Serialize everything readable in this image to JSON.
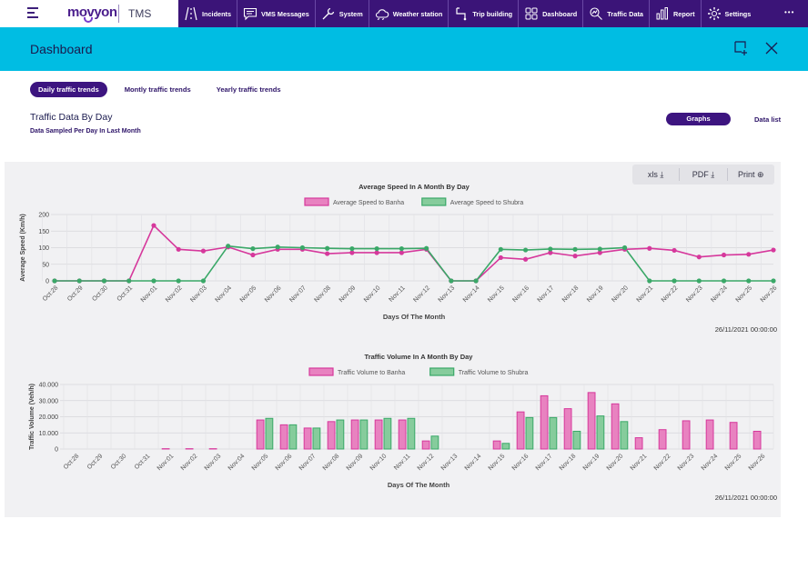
{
  "brand": {
    "logo": "movyon",
    "app": "TMS"
  },
  "nav": {
    "items": [
      {
        "label": "Incidents",
        "icon": "road-icon"
      },
      {
        "label": "VMS Messages",
        "icon": "message-icon"
      },
      {
        "label": "System",
        "icon": "wrench-icon"
      },
      {
        "label": "Weather station",
        "icon": "weather-icon"
      },
      {
        "label": "Trip building",
        "icon": "route-icon"
      },
      {
        "label": "Dashboard",
        "icon": "grid-icon"
      },
      {
        "label": "Traffic Data",
        "icon": "analytics-icon"
      },
      {
        "label": "Report",
        "icon": "bar-chart-icon"
      },
      {
        "label": "Settings",
        "icon": "gear-icon"
      }
    ],
    "more": "•••"
  },
  "header": {
    "title": "Dashboard"
  },
  "tabs": [
    "Daily traffic trends",
    "Montly traffic trends",
    "Yearly traffic trends"
  ],
  "section": {
    "title": "Traffic Data  By Day",
    "subtitle": "Data Sampled Per Day In Last Month"
  },
  "view": {
    "graphs": "Graphs",
    "datalist": "Data list"
  },
  "export": {
    "xls": "xls ⤓",
    "pdf": "PDF ⤓",
    "print": "Print ⊕"
  },
  "colors": {
    "banha": "#d6389c",
    "shubra": "#3aa868",
    "nav": "#3b1478",
    "header": "#00bde3"
  },
  "chart_data": [
    {
      "type": "line",
      "title": "Average Speed In A Month By Day",
      "xlabel": "Days Of The Month",
      "ylabel": "Average Speed (Km/h)",
      "ylim": [
        0,
        200
      ],
      "yticks": [
        "0",
        "50",
        "100",
        "150",
        "200"
      ],
      "categories": [
        "Oct:28",
        "Oct:29",
        "Oct:30",
        "Oct:31",
        "Nov:01",
        "Nov:02",
        "Nov:03",
        "Nov:04",
        "Nov:05",
        "Nov:06",
        "Nov:07",
        "Nov:08",
        "Nov:09",
        "Nov:10",
        "Nov:11",
        "Nov:12",
        "Nov:13",
        "Nov:14",
        "Nov:15",
        "Nov:16",
        "Nov:17",
        "Nov:18",
        "Nov:19",
        "Nov:20",
        "Nov:21",
        "Nov:22",
        "Nov:23",
        "Nov:24",
        "Nov:25",
        "Nov:26"
      ],
      "series": [
        {
          "name": "Average Speed to Banha",
          "values": [
            0,
            0,
            0,
            0,
            167,
            95,
            90,
            102,
            78,
            95,
            95,
            82,
            85,
            85,
            85,
            95,
            0,
            0,
            70,
            65,
            85,
            75,
            85,
            95,
            98,
            92,
            72,
            78,
            80,
            93
          ]
        },
        {
          "name": "Average Speed to Shubra",
          "values": [
            0,
            0,
            0,
            0,
            0,
            0,
            0,
            105,
            97,
            102,
            100,
            98,
            97,
            97,
            97,
            98,
            0,
            0,
            95,
            93,
            96,
            95,
            96,
            100,
            0,
            0,
            0,
            0,
            0,
            0
          ]
        }
      ],
      "timestamp": "26/11/2021 00:00:00"
    },
    {
      "type": "bar",
      "title": "Traffic Volume In A Month By Day",
      "xlabel": "Days Of The Month",
      "ylabel": "Traffic Volume (Veh/h)",
      "ylim": [
        0,
        40000
      ],
      "yticks": [
        "0",
        "10.000",
        "20.000",
        "30.000",
        "40.000"
      ],
      "categories": [
        "Oct:28",
        "Oct:29",
        "Oct:30",
        "Oct:31",
        "Nov:01",
        "Nov:02",
        "Nov:03",
        "Nov:04",
        "Nov:05",
        "Nov:06",
        "Nov:07",
        "Nov:08",
        "Nov:09",
        "Nov:10",
        "Nov:11",
        "Nov:12",
        "Nov:13",
        "Nov:14",
        "Nov:15",
        "Nov:16",
        "Nov:17",
        "Nov:18",
        "Nov:19",
        "Nov:20",
        "Nov:21",
        "Nov:22",
        "Nov:23",
        "Nov:24",
        "Nov:25",
        "Nov:26"
      ],
      "series": [
        {
          "name": "Traffic Volume to Banha",
          "values": [
            0,
            0,
            0,
            0,
            200,
            200,
            200,
            0,
            18000,
            15000,
            13000,
            17000,
            18000,
            18000,
            18000,
            5000,
            0,
            0,
            5000,
            23000,
            33000,
            25000,
            35000,
            28000,
            7000,
            12000,
            17500,
            18000,
            16500,
            11000
          ]
        },
        {
          "name": "Traffic Volume to Shubra",
          "values": [
            0,
            0,
            0,
            0,
            0,
            0,
            0,
            0,
            19000,
            15000,
            13000,
            18000,
            18000,
            19000,
            19000,
            8000,
            0,
            0,
            3500,
            19500,
            19500,
            11000,
            20500,
            17000,
            0,
            0,
            0,
            0,
            0,
            0
          ]
        }
      ],
      "timestamp": "26/11/2021 00:00:00"
    }
  ]
}
